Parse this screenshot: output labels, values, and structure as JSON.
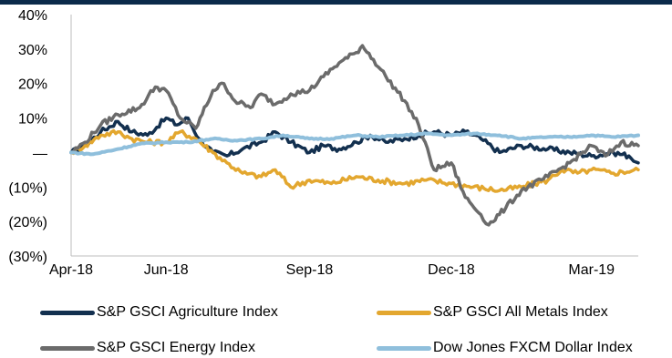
{
  "chart_data": {
    "type": "line",
    "title": "",
    "xlabel": "",
    "ylabel": "",
    "x_tick_labels": [
      "Apr-18",
      "Jun-18",
      "Sep-18",
      "Dec-18",
      "Mar-19"
    ],
    "y_tick_labels": [
      "40%",
      "30%",
      "20%",
      "10%",
      "—",
      "(10%)",
      "(20%)",
      "(30%)"
    ],
    "ylim": [
      -30,
      40
    ],
    "y_ticks": [
      40,
      30,
      20,
      10,
      0,
      -10,
      -20,
      -30
    ],
    "x_range": [
      "2018-04-01",
      "2019-03-31"
    ],
    "x_ticks": [
      "2018-04-01",
      "2018-06-01",
      "2018-09-01",
      "2018-12-01",
      "2019-03-01"
    ],
    "grid": false,
    "legend_position": "bottom",
    "series": [
      {
        "name": "S&P GSCI Agriculture Index",
        "color": "#13304f",
        "points": [
          [
            "2018-04-01",
            0
          ],
          [
            "2018-04-10",
            2
          ],
          [
            "2018-04-20",
            6
          ],
          [
            "2018-05-01",
            9
          ],
          [
            "2018-05-10",
            6
          ],
          [
            "2018-05-20",
            5
          ],
          [
            "2018-06-01",
            10
          ],
          [
            "2018-06-08",
            8
          ],
          [
            "2018-06-15",
            10
          ],
          [
            "2018-06-22",
            4
          ],
          [
            "2018-07-01",
            0
          ],
          [
            "2018-07-10",
            -1
          ],
          [
            "2018-07-20",
            1
          ],
          [
            "2018-08-01",
            3
          ],
          [
            "2018-08-10",
            6
          ],
          [
            "2018-08-20",
            3
          ],
          [
            "2018-09-01",
            0
          ],
          [
            "2018-09-10",
            2
          ],
          [
            "2018-09-20",
            1
          ],
          [
            "2018-10-01",
            3
          ],
          [
            "2018-10-10",
            5
          ],
          [
            "2018-10-20",
            3
          ],
          [
            "2018-11-01",
            4
          ],
          [
            "2018-11-10",
            5
          ],
          [
            "2018-11-20",
            6
          ],
          [
            "2018-12-01",
            5
          ],
          [
            "2018-12-10",
            6
          ],
          [
            "2018-12-20",
            4
          ],
          [
            "2019-01-01",
            0
          ],
          [
            "2019-01-15",
            2
          ],
          [
            "2019-02-01",
            1
          ],
          [
            "2019-02-15",
            0
          ],
          [
            "2019-03-01",
            -1
          ],
          [
            "2019-03-15",
            0
          ],
          [
            "2019-03-25",
            -1
          ],
          [
            "2019-03-31",
            -3
          ]
        ]
      },
      {
        "name": "S&P GSCI All Metals Index",
        "color": "#e3a72f",
        "points": [
          [
            "2018-04-01",
            0
          ],
          [
            "2018-04-10",
            2
          ],
          [
            "2018-04-20",
            5
          ],
          [
            "2018-05-01",
            6
          ],
          [
            "2018-05-10",
            4
          ],
          [
            "2018-05-20",
            3
          ],
          [
            "2018-06-01",
            3
          ],
          [
            "2018-06-10",
            6
          ],
          [
            "2018-06-20",
            4
          ],
          [
            "2018-07-01",
            0
          ],
          [
            "2018-07-10",
            -3
          ],
          [
            "2018-07-20",
            -6
          ],
          [
            "2018-08-01",
            -7
          ],
          [
            "2018-08-10",
            -5
          ],
          [
            "2018-08-20",
            -10
          ],
          [
            "2018-09-01",
            -8
          ],
          [
            "2018-09-15",
            -9
          ],
          [
            "2018-10-01",
            -7
          ],
          [
            "2018-10-15",
            -8
          ],
          [
            "2018-11-01",
            -9
          ],
          [
            "2018-11-15",
            -8
          ],
          [
            "2018-12-01",
            -9
          ],
          [
            "2018-12-15",
            -10
          ],
          [
            "2019-01-01",
            -11
          ],
          [
            "2019-01-15",
            -10
          ],
          [
            "2019-02-01",
            -8
          ],
          [
            "2019-02-10",
            -5
          ],
          [
            "2019-02-20",
            -6
          ],
          [
            "2019-03-01",
            -5
          ],
          [
            "2019-03-15",
            -6
          ],
          [
            "2019-03-31",
            -5
          ]
        ]
      },
      {
        "name": "S&P GSCI Energy Index",
        "color": "#6b6b6b",
        "points": [
          [
            "2018-04-01",
            0
          ],
          [
            "2018-04-10",
            3
          ],
          [
            "2018-04-20",
            8
          ],
          [
            "2018-05-01",
            11
          ],
          [
            "2018-05-15",
            13
          ],
          [
            "2018-05-25",
            19
          ],
          [
            "2018-06-01",
            18
          ],
          [
            "2018-06-10",
            10
          ],
          [
            "2018-06-20",
            7
          ],
          [
            "2018-07-01",
            18
          ],
          [
            "2018-07-08",
            20
          ],
          [
            "2018-07-15",
            15
          ],
          [
            "2018-07-25",
            13
          ],
          [
            "2018-08-01",
            17
          ],
          [
            "2018-08-10",
            14
          ],
          [
            "2018-08-20",
            17
          ],
          [
            "2018-09-01",
            18
          ],
          [
            "2018-09-10",
            22
          ],
          [
            "2018-09-20",
            26
          ],
          [
            "2018-10-01",
            29
          ],
          [
            "2018-10-05",
            31
          ],
          [
            "2018-10-12",
            27
          ],
          [
            "2018-10-20",
            22
          ],
          [
            "2018-11-01",
            15
          ],
          [
            "2018-11-10",
            8
          ],
          [
            "2018-11-20",
            -5
          ],
          [
            "2018-12-01",
            -3
          ],
          [
            "2018-12-10",
            -13
          ],
          [
            "2018-12-20",
            -18
          ],
          [
            "2018-12-25",
            -21
          ],
          [
            "2019-01-05",
            -16
          ],
          [
            "2019-01-15",
            -11
          ],
          [
            "2019-02-01",
            -7
          ],
          [
            "2019-02-15",
            -3
          ],
          [
            "2019-03-01",
            2
          ],
          [
            "2019-03-10",
            -1
          ],
          [
            "2019-03-20",
            3
          ],
          [
            "2019-03-31",
            2
          ]
        ]
      },
      {
        "name": "Dow Jones FXCM Dollar Index",
        "color": "#8fbfdc",
        "points": [
          [
            "2018-04-01",
            0
          ],
          [
            "2018-04-15",
            -0.5
          ],
          [
            "2018-05-01",
            1
          ],
          [
            "2018-05-15",
            2.5
          ],
          [
            "2018-06-01",
            3
          ],
          [
            "2018-06-15",
            3
          ],
          [
            "2018-07-01",
            4
          ],
          [
            "2018-07-15",
            3.5
          ],
          [
            "2018-08-01",
            4
          ],
          [
            "2018-08-15",
            5
          ],
          [
            "2018-09-01",
            4
          ],
          [
            "2018-09-15",
            4
          ],
          [
            "2018-10-01",
            5
          ],
          [
            "2018-10-15",
            4.5
          ],
          [
            "2018-11-01",
            5
          ],
          [
            "2018-11-15",
            5.5
          ],
          [
            "2018-12-01",
            5
          ],
          [
            "2018-12-15",
            5.5
          ],
          [
            "2019-01-01",
            5
          ],
          [
            "2019-01-15",
            4
          ],
          [
            "2019-02-01",
            4.5
          ],
          [
            "2019-02-15",
            4.5
          ],
          [
            "2019-03-01",
            5
          ],
          [
            "2019-03-15",
            4.5
          ],
          [
            "2019-03-31",
            5
          ]
        ]
      }
    ]
  },
  "legend": [
    {
      "label": "S&P GSCI Agriculture Index",
      "color": "#13304f"
    },
    {
      "label": "S&P GSCI All Metals Index",
      "color": "#e3a72f"
    },
    {
      "label": "S&P GSCI Energy Index",
      "color": "#6b6b6b"
    },
    {
      "label": "Dow Jones FXCM Dollar Index",
      "color": "#8fbfdc"
    }
  ]
}
